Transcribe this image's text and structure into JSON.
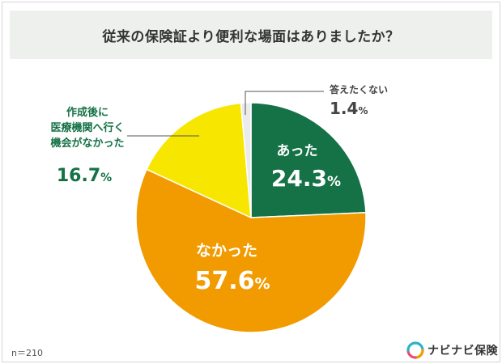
{
  "chart_data": {
    "type": "pie",
    "title": "従来の保険証より便利な場面はありましたか？",
    "start": "12 o'clock, clockwise",
    "slices": [
      {
        "label": "あった",
        "value": 24.3,
        "pct_label": "24.3%",
        "color": "#157146"
      },
      {
        "label": "なかった",
        "value": 57.6,
        "pct_label": "57.6%",
        "color": "#f29b00"
      },
      {
        "label_lines": [
          "作成後に",
          "医療機関へ行く",
          "機会がなかった"
        ],
        "value": 16.7,
        "pct_label": "16.7%",
        "color": "#f7e600"
      },
      {
        "label": "答えたくない",
        "value": 1.4,
        "pct_label": "1.4%",
        "color": "#ebebeb"
      }
    ]
  },
  "footer": {
    "sample_size": "n＝210",
    "brand": "ナビナビ保険"
  }
}
